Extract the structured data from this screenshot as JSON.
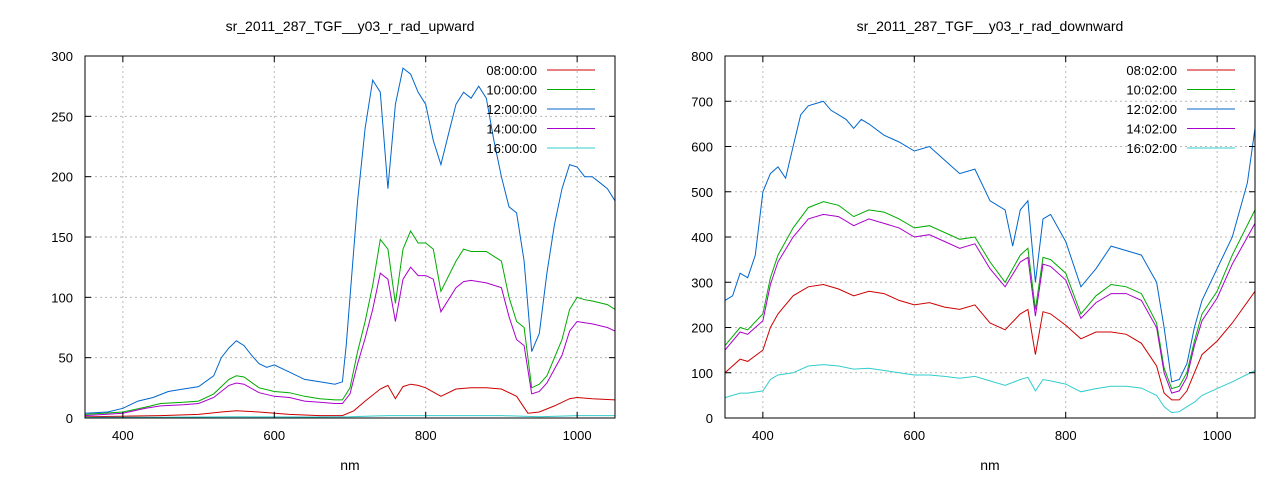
{
  "chart_data": [
    {
      "type": "line",
      "title": "sr_2011_287_TGF__y03_r_rad_upward",
      "xlabel": "nm",
      "ylabel": "",
      "xlim": [
        350,
        1050
      ],
      "ylim": [
        0,
        300
      ],
      "xticks": [
        400,
        600,
        800,
        1000
      ],
      "yticks": [
        0,
        50,
        100,
        150,
        200,
        250,
        300
      ],
      "grid": true,
      "legend_position": "top-right",
      "series": [
        {
          "name": "08:00:00",
          "color": "#cc0000",
          "x": [
            350,
            400,
            450,
            500,
            530,
            550,
            580,
            620,
            660,
            690,
            705,
            720,
            740,
            750,
            760,
            770,
            780,
            790,
            800,
            820,
            840,
            860,
            880,
            900,
            920,
            935,
            950,
            970,
            990,
            1000,
            1020,
            1050
          ],
          "y": [
            1,
            1.5,
            2,
            3,
            5,
            6,
            5,
            3,
            2,
            2,
            6,
            14,
            24,
            27,
            16,
            26,
            28,
            27,
            25,
            18,
            24,
            25,
            25,
            24,
            18,
            4,
            5,
            10,
            16,
            17,
            16,
            15
          ]
        },
        {
          "name": "10:00:00",
          "color": "#00aa00",
          "x": [
            350,
            400,
            430,
            450,
            480,
            500,
            520,
            540,
            550,
            560,
            580,
            600,
            620,
            640,
            660,
            680,
            690,
            700,
            710,
            720,
            730,
            740,
            750,
            760,
            770,
            780,
            790,
            800,
            810,
            820,
            840,
            850,
            860,
            880,
            900,
            910,
            920,
            930,
            940,
            950,
            960,
            980,
            990,
            1000,
            1010,
            1020,
            1040,
            1050
          ],
          "y": [
            3,
            5,
            9,
            12,
            13,
            14,
            20,
            32,
            35,
            34,
            25,
            22,
            21,
            18,
            16,
            15,
            15,
            25,
            55,
            80,
            110,
            148,
            140,
            95,
            140,
            155,
            145,
            145,
            140,
            105,
            130,
            140,
            138,
            138,
            130,
            100,
            80,
            75,
            25,
            28,
            35,
            65,
            90,
            100,
            98,
            97,
            94,
            90
          ]
        },
        {
          "name": "12:00:00",
          "color": "#0066cc",
          "x": [
            350,
            380,
            400,
            420,
            440,
            460,
            480,
            500,
            520,
            530,
            540,
            550,
            560,
            570,
            580,
            590,
            600,
            620,
            640,
            660,
            680,
            690,
            695,
            700,
            710,
            720,
            730,
            740,
            750,
            760,
            770,
            780,
            790,
            800,
            810,
            820,
            830,
            840,
            850,
            860,
            870,
            880,
            890,
            900,
            910,
            920,
            930,
            940,
            950,
            960,
            970,
            980,
            990,
            1000,
            1010,
            1020,
            1030,
            1040,
            1050
          ],
          "y": [
            4,
            5,
            8,
            14,
            17,
            22,
            24,
            26,
            35,
            50,
            58,
            64,
            60,
            52,
            45,
            42,
            44,
            38,
            32,
            30,
            28,
            30,
            60,
            100,
            180,
            240,
            280,
            270,
            190,
            260,
            290,
            285,
            270,
            260,
            230,
            210,
            235,
            260,
            270,
            265,
            275,
            265,
            230,
            200,
            175,
            170,
            130,
            55,
            70,
            120,
            160,
            190,
            210,
            208,
            200,
            200,
            195,
            190,
            180
          ]
        },
        {
          "name": "14:00:00",
          "color": "#aa00cc",
          "x": [
            350,
            400,
            430,
            450,
            480,
            500,
            520,
            540,
            550,
            560,
            580,
            600,
            620,
            640,
            660,
            680,
            690,
            700,
            710,
            720,
            730,
            740,
            750,
            760,
            770,
            780,
            790,
            800,
            810,
            820,
            840,
            850,
            860,
            880,
            900,
            910,
            920,
            930,
            940,
            950,
            960,
            980,
            990,
            1000,
            1010,
            1020,
            1040,
            1050
          ],
          "y": [
            2,
            4,
            8,
            10,
            11,
            12,
            17,
            27,
            29,
            28,
            21,
            18,
            17,
            14,
            13,
            12,
            12,
            20,
            45,
            66,
            90,
            120,
            115,
            80,
            115,
            125,
            118,
            118,
            115,
            88,
            108,
            113,
            114,
            112,
            108,
            84,
            65,
            60,
            20,
            22,
            29,
            52,
            72,
            80,
            79,
            78,
            75,
            72
          ]
        },
        {
          "name": "16:00:00",
          "color": "#33cccc",
          "x": [
            350,
            400,
            450,
            500,
            550,
            600,
            650,
            700,
            750,
            800,
            850,
            900,
            950,
            1000,
            1050
          ],
          "y": [
            0.5,
            0.6,
            0.7,
            0.8,
            1,
            0.9,
            0.8,
            1,
            2,
            2,
            2,
            2,
            1,
            2,
            2
          ]
        }
      ]
    },
    {
      "type": "line",
      "title": "sr_2011_287_TGF__y03_r_rad_downward",
      "xlabel": "nm",
      "ylabel": "",
      "xlim": [
        350,
        1050
      ],
      "ylim": [
        0,
        800
      ],
      "xticks": [
        400,
        600,
        800,
        1000
      ],
      "yticks": [
        0,
        100,
        200,
        300,
        400,
        500,
        600,
        700,
        800
      ],
      "grid": true,
      "legend_position": "top-right",
      "series": [
        {
          "name": "08:02:00",
          "color": "#cc0000",
          "x": [
            350,
            370,
            380,
            400,
            410,
            420,
            440,
            460,
            480,
            500,
            520,
            540,
            560,
            580,
            600,
            620,
            640,
            660,
            680,
            700,
            720,
            740,
            750,
            760,
            770,
            780,
            800,
            820,
            840,
            860,
            880,
            900,
            920,
            930,
            940,
            950,
            960,
            970,
            980,
            1000,
            1020,
            1050
          ],
          "y": [
            100,
            130,
            125,
            150,
            200,
            230,
            270,
            290,
            295,
            285,
            270,
            280,
            275,
            260,
            250,
            255,
            245,
            240,
            250,
            210,
            195,
            230,
            240,
            140,
            235,
            230,
            205,
            175,
            190,
            190,
            185,
            165,
            115,
            55,
            40,
            40,
            60,
            100,
            140,
            170,
            210,
            280
          ]
        },
        {
          "name": "10:02:00",
          "color": "#00aa00",
          "x": [
            350,
            370,
            380,
            400,
            410,
            420,
            440,
            460,
            480,
            500,
            520,
            540,
            560,
            580,
            600,
            620,
            640,
            660,
            680,
            700,
            720,
            740,
            750,
            760,
            770,
            780,
            800,
            820,
            840,
            860,
            880,
            900,
            920,
            930,
            940,
            950,
            960,
            970,
            980,
            1000,
            1020,
            1050
          ],
          "y": [
            160,
            200,
            195,
            230,
            310,
            360,
            420,
            465,
            478,
            470,
            445,
            460,
            455,
            440,
            420,
            425,
            410,
            395,
            400,
            345,
            300,
            360,
            375,
            240,
            355,
            350,
            320,
            230,
            270,
            295,
            290,
            275,
            210,
            110,
            65,
            70,
            100,
            170,
            230,
            280,
            360,
            460
          ]
        },
        {
          "name": "12:02:00",
          "color": "#0066cc",
          "x": [
            350,
            360,
            370,
            380,
            390,
            400,
            410,
            420,
            430,
            440,
            450,
            460,
            470,
            480,
            490,
            500,
            510,
            520,
            530,
            540,
            560,
            580,
            600,
            620,
            640,
            660,
            680,
            700,
            720,
            730,
            740,
            750,
            760,
            770,
            780,
            800,
            820,
            840,
            860,
            880,
            900,
            920,
            930,
            940,
            950,
            960,
            970,
            980,
            1000,
            1020,
            1040,
            1050
          ],
          "y": [
            260,
            270,
            320,
            310,
            360,
            500,
            540,
            555,
            530,
            600,
            670,
            690,
            695,
            700,
            680,
            670,
            660,
            640,
            660,
            650,
            625,
            610,
            590,
            600,
            570,
            540,
            550,
            480,
            460,
            380,
            460,
            480,
            300,
            440,
            450,
            390,
            290,
            330,
            380,
            370,
            360,
            300,
            200,
            80,
            85,
            120,
            200,
            260,
            330,
            400,
            520,
            640
          ]
        },
        {
          "name": "14:02:00",
          "color": "#aa00cc",
          "x": [
            350,
            370,
            380,
            400,
            410,
            420,
            440,
            460,
            480,
            500,
            520,
            540,
            560,
            580,
            600,
            620,
            640,
            660,
            680,
            700,
            720,
            740,
            750,
            760,
            770,
            780,
            800,
            820,
            840,
            860,
            880,
            900,
            920,
            930,
            940,
            950,
            960,
            970,
            980,
            1000,
            1020,
            1050
          ],
          "y": [
            150,
            190,
            185,
            215,
            295,
            345,
            400,
            440,
            450,
            445,
            425,
            440,
            430,
            420,
            400,
            405,
            390,
            375,
            385,
            330,
            290,
            345,
            355,
            225,
            340,
            335,
            305,
            220,
            255,
            275,
            275,
            260,
            200,
            100,
            55,
            60,
            90,
            160,
            215,
            265,
            340,
            430
          ]
        },
        {
          "name": "16:02:00",
          "color": "#33cccc",
          "x": [
            350,
            370,
            380,
            400,
            410,
            420,
            440,
            460,
            480,
            500,
            520,
            540,
            560,
            580,
            600,
            620,
            640,
            660,
            680,
            700,
            720,
            740,
            750,
            760,
            770,
            780,
            800,
            820,
            840,
            860,
            880,
            900,
            920,
            930,
            940,
            950,
            960,
            970,
            980,
            1000,
            1020,
            1050
          ],
          "y": [
            45,
            55,
            55,
            60,
            85,
            95,
            100,
            115,
            118,
            115,
            108,
            110,
            105,
            100,
            95,
            95,
            92,
            88,
            92,
            82,
            72,
            85,
            90,
            60,
            85,
            82,
            75,
            58,
            65,
            70,
            70,
            66,
            50,
            25,
            12,
            14,
            25,
            35,
            50,
            65,
            80,
            105
          ]
        }
      ]
    }
  ]
}
